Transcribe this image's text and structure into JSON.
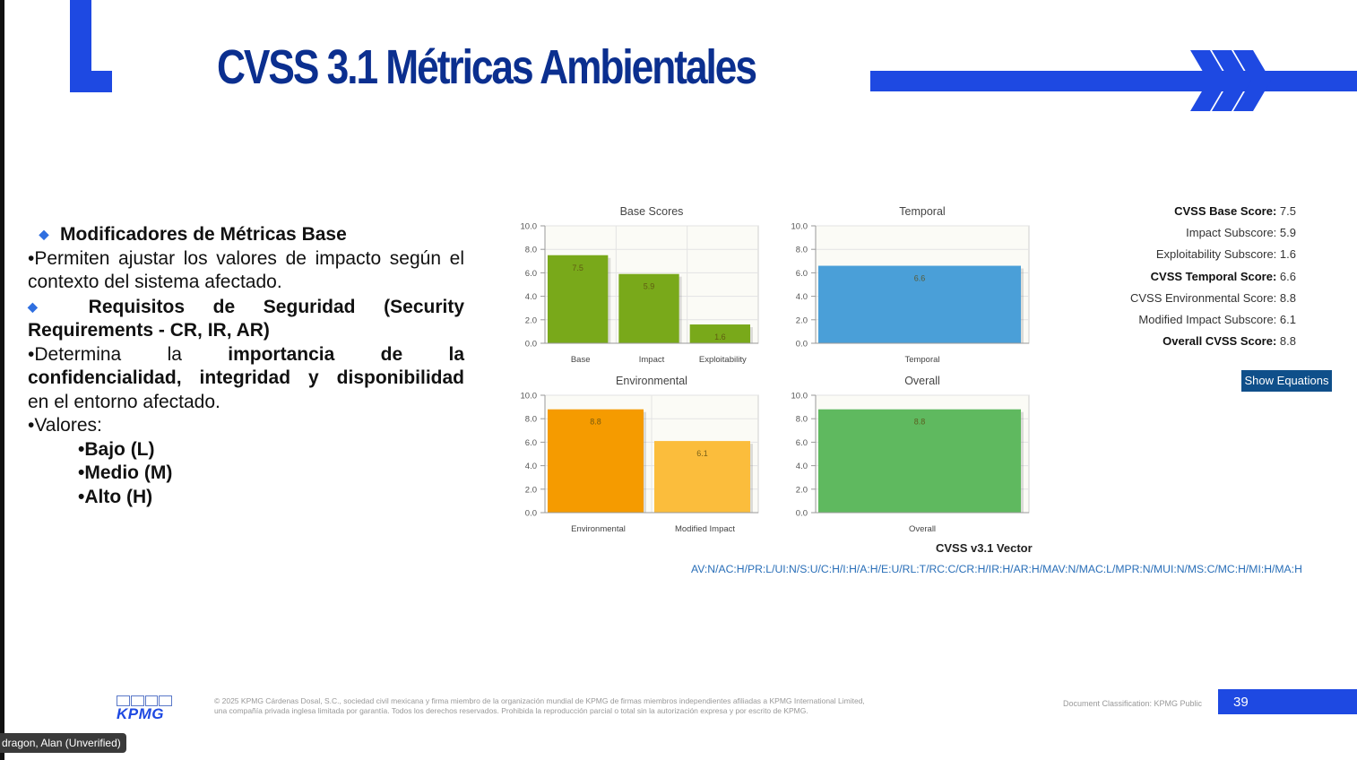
{
  "slide": {
    "title": "CVSS 3.1 Métricas Ambientales",
    "page_number": "39",
    "doc_classification": "Document Classification: KPMG Public",
    "logo_text": "KPMG",
    "legal_line1": "© 2025 KPMG Cárdenas Dosal, S.C., sociedad civil mexicana y firma miembro de la organización mundial de KPMG de firmas miembros independientes afiliadas a KPMG International Limited,",
    "legal_line2": "una compañía privada inglesa limitada por garantía. Todos los derechos reservados. Prohibida la reproducción parcial o total sin la autorización expresa y por escrito de KPMG.",
    "presenter": "dragon, Alan (Unverified)"
  },
  "bullets": {
    "h1": "Modificadores de Métricas Base",
    "p1_a": "•Permiten ajustar los valores de impacto según el",
    "p1_b": "contexto del sistema afectado.",
    "h2_a": "Requisitos de Seguridad (Security",
    "h2_b": "Requirements - CR, IR, AR)",
    "p2_pre": "•Determina la ",
    "p2_bold1": "importancia de la",
    "p2_bold2": "confidencialidad, integridad y disponibilidad",
    "p2_end": "en el entorno afectado.",
    "p3": "•Valores:",
    "v1": "•Bajo (L)",
    "v2": "•Medio (M)",
    "v3": "•Alto (H)"
  },
  "chart_data": [
    {
      "type": "bar",
      "title": "Base Scores",
      "categories": [
        "Base",
        "Impact",
        "Exploitability"
      ],
      "values": [
        7.5,
        5.9,
        1.6
      ],
      "ylim": [
        0,
        10
      ],
      "yticks": [
        "0.0",
        "2.0",
        "4.0",
        "6.0",
        "8.0",
        "10.0"
      ],
      "colors": [
        "#79a91a",
        "#79a91a",
        "#79a91a"
      ],
      "grid": true
    },
    {
      "type": "bar",
      "title": "Temporal",
      "categories": [
        "Temporal"
      ],
      "values": [
        6.6
      ],
      "ylim": [
        0,
        10
      ],
      "yticks": [
        "0.0",
        "2.0",
        "4.0",
        "6.0",
        "8.0",
        "10.0"
      ],
      "colors": [
        "#4a9fd8"
      ],
      "grid": true
    },
    {
      "type": "bar",
      "title": "Environmental",
      "categories": [
        "Environmental",
        "Modified Impact"
      ],
      "values": [
        8.8,
        6.1
      ],
      "ylim": [
        0,
        10
      ],
      "yticks": [
        "0.0",
        "2.0",
        "4.0",
        "6.0",
        "8.0",
        "10.0"
      ],
      "colors": [
        "#f59b00",
        "#fbbd3c"
      ],
      "grid": true
    },
    {
      "type": "bar",
      "title": "Overall",
      "categories": [
        "Overall"
      ],
      "values": [
        8.8
      ],
      "ylim": [
        0,
        10
      ],
      "yticks": [
        "0.0",
        "2.0",
        "4.0",
        "6.0",
        "8.0",
        "10.0"
      ],
      "colors": [
        "#5fb95f"
      ],
      "grid": true
    }
  ],
  "scores": {
    "base_label": "CVSS Base Score:",
    "base_value": "7.5",
    "impact_label": "Impact Subscore:",
    "impact_value": "5.9",
    "exploit_label": "Exploitability Subscore:",
    "exploit_value": "1.6",
    "temporal_label": "CVSS Temporal Score:",
    "temporal_value": "6.6",
    "env_label": "CVSS Environmental Score:",
    "env_value": "8.8",
    "mod_label": "Modified Impact Subscore:",
    "mod_value": "6.1",
    "overall_label": "Overall CVSS Score:",
    "overall_value": "8.8"
  },
  "equations_button": "Show Equations",
  "vector": {
    "title": "CVSS v3.1 Vector",
    "value": "AV:N/AC:H/PR:L/UI:N/S:U/C:H/I:H/A:H/E:U/RL:T/RC:C/CR:H/IR:H/AR:H/MAV:N/MAC:L/MPR:N/MUI:N/MS:C/MC:H/MI:H/MA:H"
  },
  "colors": {
    "brand_blue": "#1e49e2",
    "title_blue": "#0b2f8f",
    "button": "#0f4f8a",
    "link": "#2a6fb8"
  }
}
